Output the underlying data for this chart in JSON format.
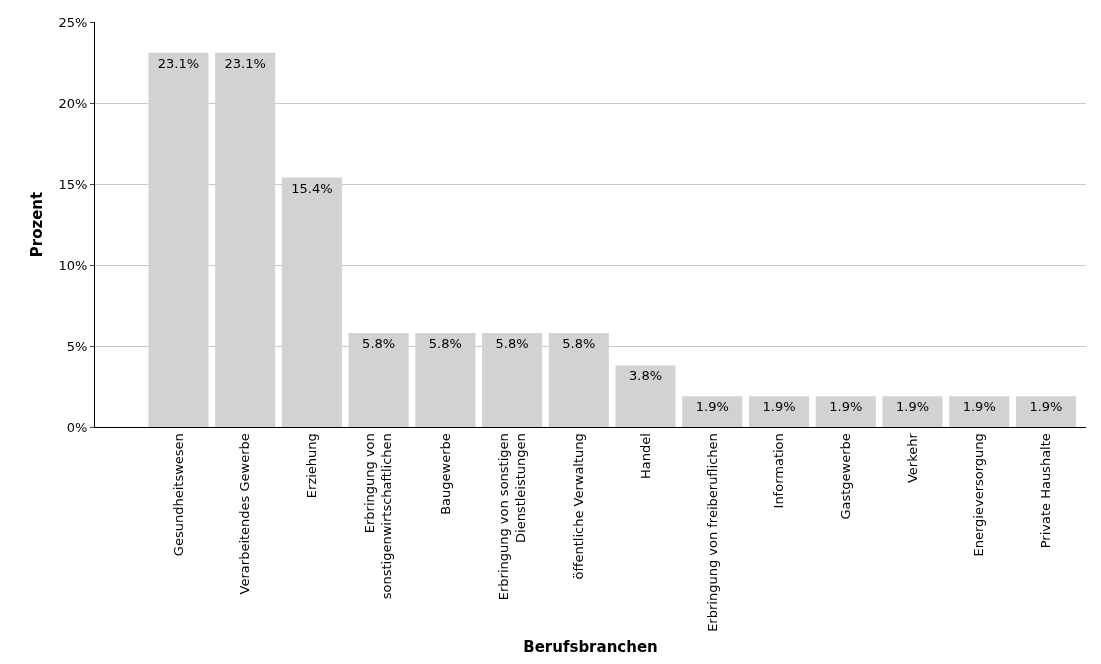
{
  "chart_data": {
    "type": "bar",
    "xlabel": "Berufsbranchen",
    "ylabel": "Prozent",
    "categories": [
      "Gesundheitswesen",
      "Verarbeitendes Gewerbe",
      "Erziehung",
      "Erbringung von\nsonstigenwirtschaftlichen",
      "Baugewerbe",
      "Erbringung von sonstigen\nDienstleistungen",
      "öffentliche Verwaltung",
      "Handel",
      "Erbringung von freiberuflichen",
      "Information",
      "Gastgewerbe",
      "Verkehr",
      "Energieversorgung",
      "Private Haushalte"
    ],
    "values": [
      23.1,
      23.1,
      15.4,
      5.8,
      5.8,
      5.8,
      5.8,
      3.8,
      1.9,
      1.9,
      1.9,
      1.9,
      1.9,
      1.9
    ],
    "value_labels": [
      "23.1%",
      "23.1%",
      "15.4%",
      "5.8%",
      "5.8%",
      "5.8%",
      "5.8%",
      "3.8%",
      "1.9%",
      "1.9%",
      "1.9%",
      "1.9%",
      "1.9%",
      "1.9%"
    ],
    "color": "#d2d2d2",
    "ylim": [
      0,
      25
    ],
    "yticks": [
      {
        "value": 0,
        "label": "0%"
      },
      {
        "value": 5,
        "label": "5%"
      },
      {
        "value": 10,
        "label": "10%"
      },
      {
        "value": 15,
        "label": "15%"
      },
      {
        "value": 20,
        "label": "20%"
      },
      {
        "value": 25,
        "label": "25%"
      }
    ],
    "grid": "y"
  }
}
